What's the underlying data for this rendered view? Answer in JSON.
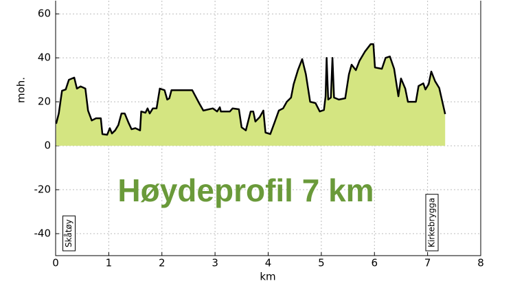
{
  "chart_data": {
    "type": "area",
    "title": "Høydeprofil 7 km",
    "xlabel": "km",
    "ylabel": "moh.",
    "annotations": [
      "Skåtøy",
      "Kirkebrygga"
    ],
    "x": [
      0.01,
      0.06,
      0.12,
      0.19,
      0.25,
      0.35,
      0.4,
      0.47,
      0.56,
      0.61,
      0.68,
      0.76,
      0.85,
      0.88,
      0.97,
      1.02,
      1.06,
      1.12,
      1.18,
      1.24,
      1.3,
      1.37,
      1.43,
      1.5,
      1.59,
      1.61,
      1.69,
      1.73,
      1.77,
      1.83,
      1.9,
      1.96,
      2.05,
      2.1,
      2.14,
      2.18,
      2.57,
      2.7,
      2.78,
      2.96,
      3.04,
      3.09,
      3.11,
      3.28,
      3.33,
      3.45,
      3.5,
      3.58,
      3.67,
      3.72,
      3.76,
      3.84,
      3.91,
      3.95,
      4.04,
      4.12,
      4.2,
      4.28,
      4.35,
      4.43,
      4.48,
      4.56,
      4.64,
      4.71,
      4.79,
      4.89,
      4.97,
      5.05,
      5.08,
      5.1,
      5.13,
      5.18,
      5.21,
      5.24,
      5.33,
      5.45,
      5.52,
      5.57,
      5.65,
      5.72,
      5.82,
      5.93,
      5.98,
      6.01,
      6.14,
      6.21,
      6.29,
      6.37,
      6.45,
      6.5,
      6.58,
      6.63,
      6.78,
      6.83,
      6.92,
      6.96,
      7.02,
      7.07,
      7.14,
      7.22,
      7.33
    ],
    "values": [
      10,
      14.7,
      25,
      25.6,
      30,
      31,
      26,
      27,
      26,
      16,
      11.5,
      12.5,
      12.5,
      5.3,
      5,
      8,
      5.6,
      7,
      9.4,
      14.7,
      14.7,
      10.6,
      7.5,
      8,
      7,
      15.6,
      15,
      17,
      14.7,
      17,
      17,
      26,
      25.3,
      21,
      21.6,
      25.3,
      25.3,
      19.4,
      16,
      17,
      15.6,
      17.5,
      15.6,
      15.6,
      17,
      16.6,
      8.4,
      7,
      15.6,
      15.6,
      11,
      13,
      16,
      6,
      5.3,
      10.6,
      16,
      17,
      20,
      21.9,
      28,
      34.4,
      39.4,
      32.5,
      20,
      19.4,
      15.6,
      16.25,
      22.5,
      40,
      21,
      21.9,
      40,
      21.9,
      21,
      21.6,
      32.5,
      36.9,
      34.4,
      38.75,
      42.8,
      46.25,
      46.25,
      35.6,
      35,
      40,
      40.6,
      35,
      22.5,
      30.6,
      26,
      20,
      20,
      27.2,
      28.4,
      25.6,
      28,
      33.75,
      29.4,
      26.25,
      14.4
    ],
    "color": "#000000",
    "fill_color": "#d4e581",
    "title_color": "#6a9a3a",
    "xlim": [
      0,
      8
    ],
    "xticks": [
      0,
      1,
      2,
      3,
      4,
      5,
      6,
      7,
      8
    ],
    "ylim": [
      -50,
      66
    ],
    "yticks": [
      -40,
      -20,
      0,
      20,
      40,
      60
    ],
    "grid": true
  }
}
